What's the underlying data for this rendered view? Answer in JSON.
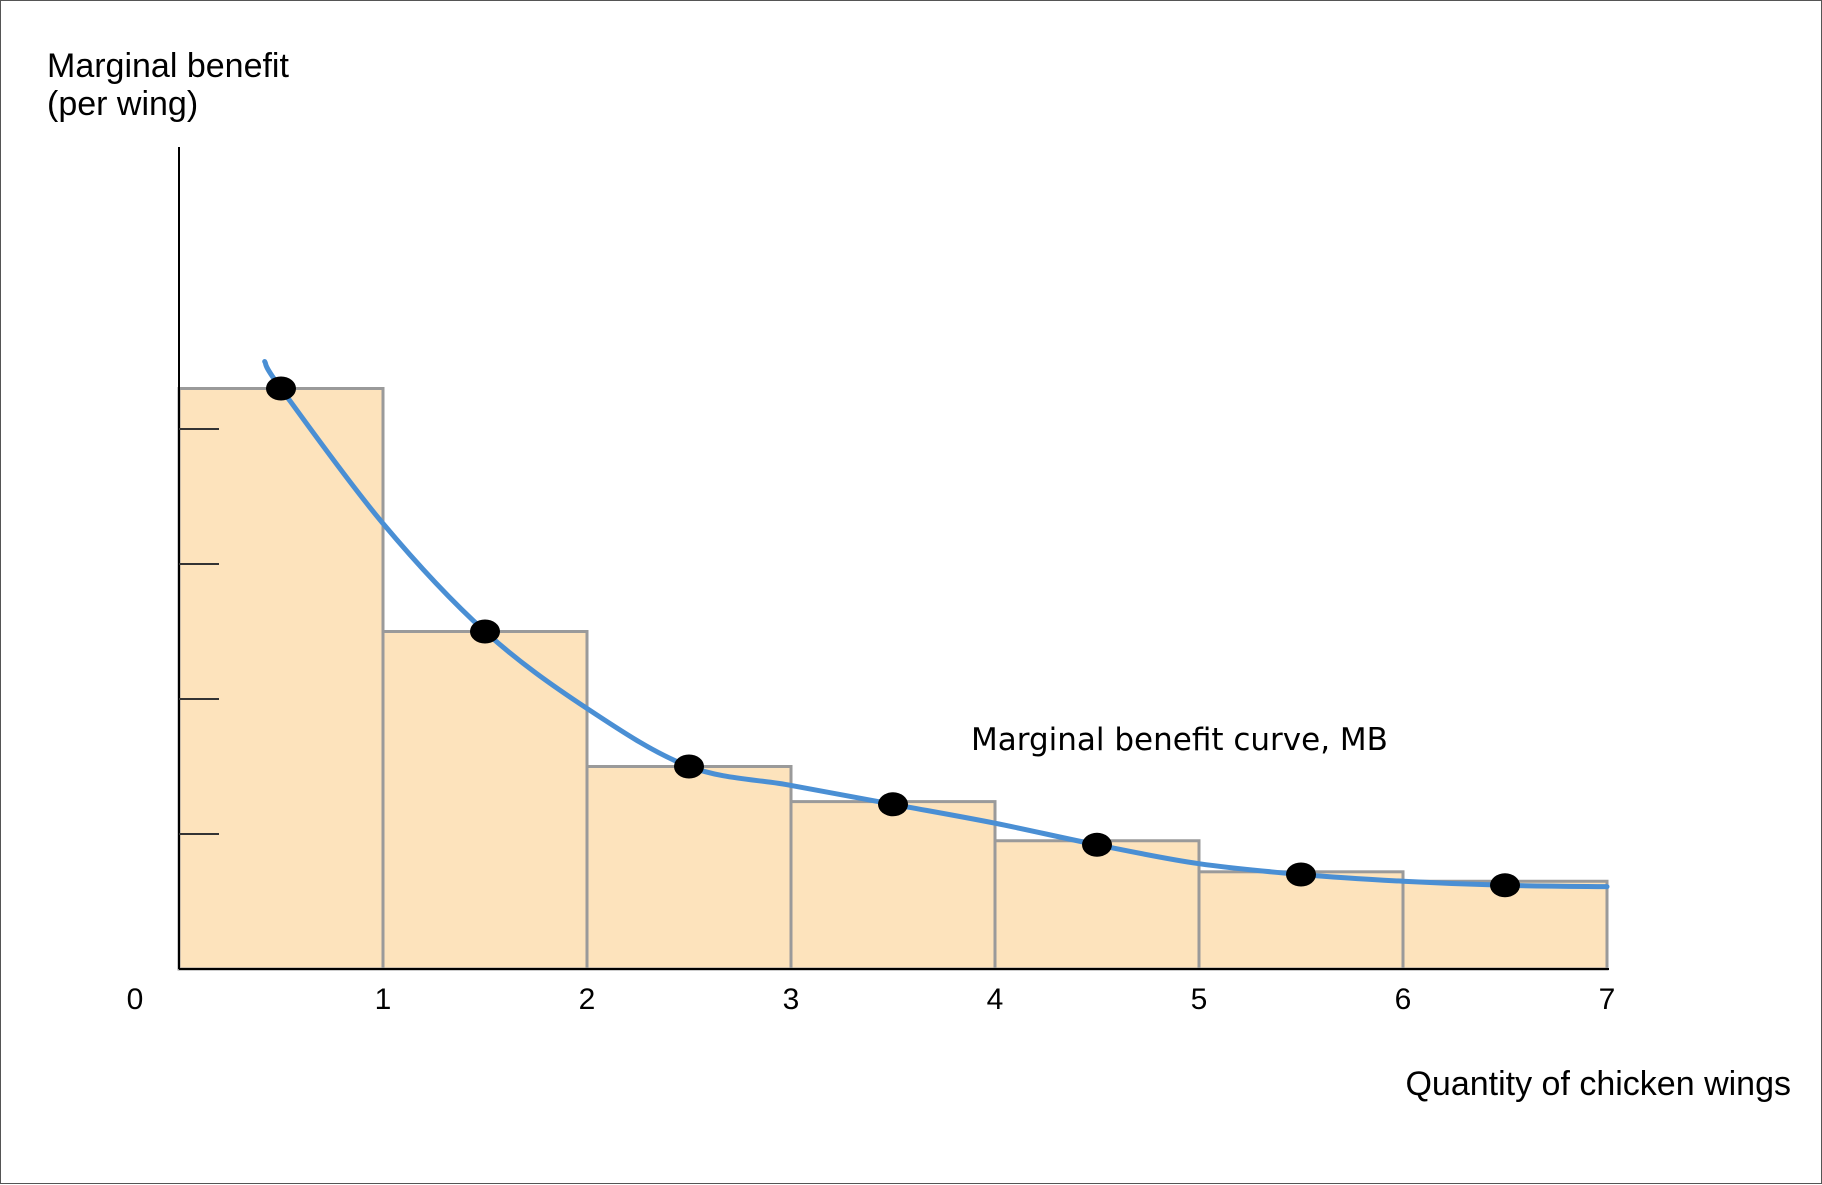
{
  "chart_data": {
    "type": "bar",
    "ylabel_lines": [
      "Marginal benefit",
      "(per wing)"
    ],
    "xlabel": "Quantity of chicken wings",
    "origin_label": "0",
    "x_tick_labels": [
      "1",
      "2",
      "3",
      "4",
      "5",
      "6",
      "7"
    ],
    "xlim": [
      0,
      7
    ],
    "ylim": [
      0,
      5
    ],
    "y_ticks": [
      1,
      2,
      3,
      4
    ],
    "bars": [
      {
        "from": 0,
        "to": 1,
        "value": 4.3
      },
      {
        "from": 1,
        "to": 2,
        "value": 2.5
      },
      {
        "from": 2,
        "to": 3,
        "value": 1.5
      },
      {
        "from": 3,
        "to": 4,
        "value": 1.24
      },
      {
        "from": 4,
        "to": 5,
        "value": 0.95
      },
      {
        "from": 5,
        "to": 6,
        "value": 0.72
      },
      {
        "from": 6,
        "to": 7,
        "value": 0.65
      }
    ],
    "points": [
      {
        "x": 0.5,
        "y": 4.3
      },
      {
        "x": 1.5,
        "y": 2.5
      },
      {
        "x": 2.5,
        "y": 1.5
      },
      {
        "x": 3.5,
        "y": 1.22
      },
      {
        "x": 4.5,
        "y": 0.92
      },
      {
        "x": 5.5,
        "y": 0.7
      },
      {
        "x": 6.5,
        "y": 0.62
      }
    ],
    "curve": {
      "label": "Marginal benefit curve, MB",
      "points": [
        {
          "x": 0.42,
          "y": 4.5
        },
        {
          "x": 0.5,
          "y": 4.3
        },
        {
          "x": 1.0,
          "y": 3.3
        },
        {
          "x": 1.5,
          "y": 2.5
        },
        {
          "x": 2.0,
          "y": 1.93
        },
        {
          "x": 2.5,
          "y": 1.5
        },
        {
          "x": 3.0,
          "y": 1.36
        },
        {
          "x": 3.5,
          "y": 1.22
        },
        {
          "x": 4.0,
          "y": 1.08
        },
        {
          "x": 4.5,
          "y": 0.92
        },
        {
          "x": 5.0,
          "y": 0.78
        },
        {
          "x": 5.5,
          "y": 0.7
        },
        {
          "x": 6.0,
          "y": 0.65
        },
        {
          "x": 6.5,
          "y": 0.62
        },
        {
          "x": 7.0,
          "y": 0.61
        }
      ]
    },
    "colors": {
      "bar_fill": "#fde3bc",
      "bar_stroke": "#9a9a9a",
      "curve": "#4a8fd4",
      "point": "#000000",
      "axis": "#000000"
    }
  }
}
